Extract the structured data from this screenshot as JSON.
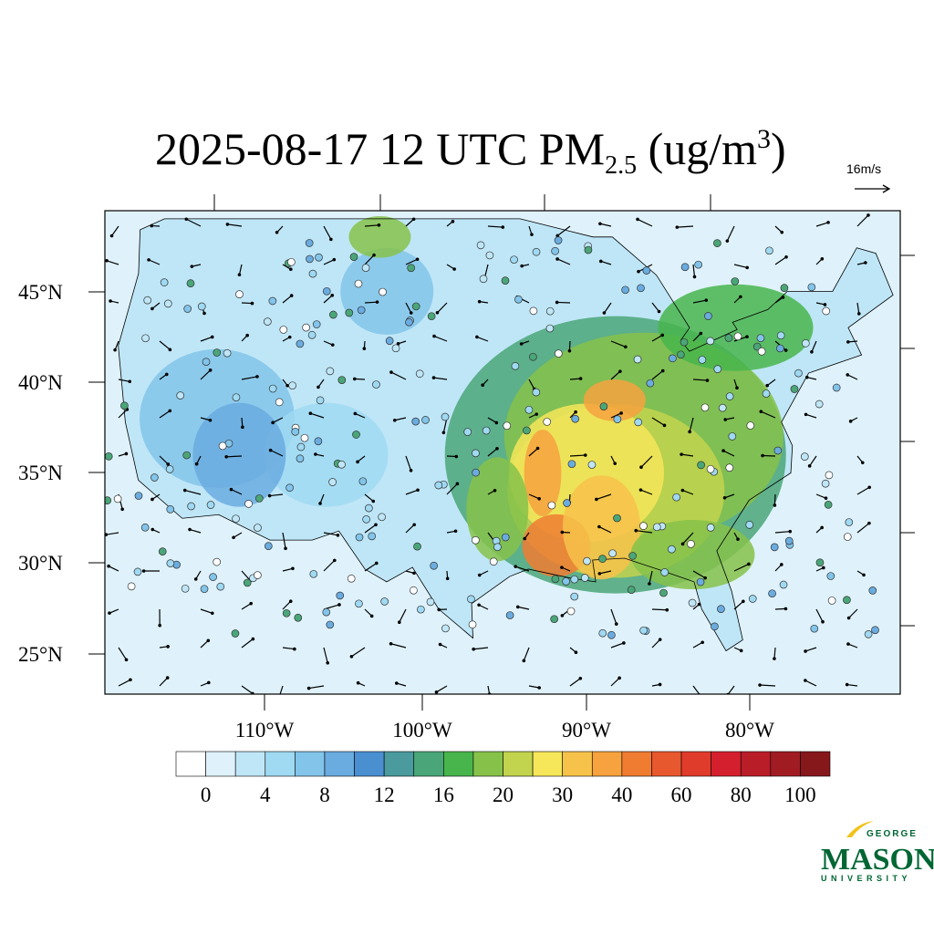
{
  "header": {
    "title": {
      "main": "2025-08-17 12 UTC PM",
      "sub": "2.5",
      "rest": " (ug/m",
      "sup": "3",
      "close": ")"
    },
    "vector_reference": "16m/s"
  },
  "map": {
    "lat_labels": [
      "45°N",
      "40°N",
      "35°N",
      "30°N",
      "25°N"
    ],
    "lon_labels": [
      "110°W",
      "100°W",
      "90°W",
      "80°W"
    ]
  },
  "colorbar": {
    "colors": [
      "#ffffff",
      "#dff2fb",
      "#bfe6f7",
      "#9fd9f2",
      "#82c4ea",
      "#6aace0",
      "#4a8fd0",
      "#4a9a9e",
      "#4aa678",
      "#48b54c",
      "#86c24a",
      "#c2d34e",
      "#f6e65a",
      "#f7c24a",
      "#f6a23e",
      "#f07c32",
      "#e8582e",
      "#e03c2c",
      "#d4202e",
      "#b81d28",
      "#a01c22",
      "#86181c"
    ],
    "labels": [
      "0",
      "4",
      "8",
      "12",
      "16",
      "20",
      "30",
      "40",
      "60",
      "80",
      "100"
    ]
  },
  "logo": {
    "top": "GEORGE",
    "main": "MASON",
    "bottom": "UNIVERSITY"
  }
}
